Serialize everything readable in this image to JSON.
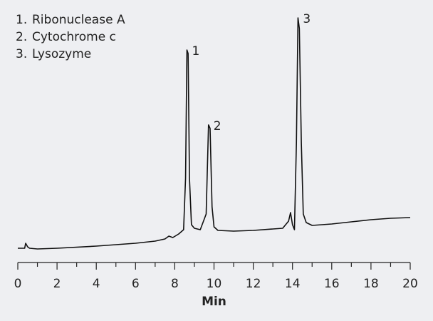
{
  "chart_data": {
    "type": "line",
    "legend": [
      {
        "number": "1.",
        "name": "Ribonuclease A"
      },
      {
        "number": "2.",
        "name": "Cytochrome c"
      },
      {
        "number": "3.",
        "name": "Lysozyme"
      }
    ],
    "peak_labels": [
      "1",
      "2",
      "3"
    ],
    "xlabel": "Min",
    "x": [
      0,
      0.35,
      0.4,
      0.5,
      0.6,
      1,
      2,
      4,
      6,
      7,
      7.5,
      7.7,
      7.9,
      8.2,
      8.45,
      8.55,
      8.62,
      8.68,
      8.75,
      8.85,
      9.0,
      9.3,
      9.6,
      9.72,
      9.8,
      9.9,
      10.0,
      10.2,
      11,
      12,
      13,
      13.5,
      13.8,
      13.9,
      14.0,
      14.1,
      14.2,
      14.28,
      14.35,
      14.45,
      14.55,
      14.7,
      15,
      16,
      17,
      18,
      19,
      20
    ],
    "values": [
      20,
      20,
      27,
      22,
      20,
      19,
      20,
      23,
      27,
      30,
      33,
      37,
      35,
      40,
      46,
      118,
      298,
      293,
      118,
      53,
      48,
      46,
      68,
      193,
      188,
      78,
      50,
      45,
      44,
      45,
      47,
      48,
      58,
      70,
      53,
      46,
      168,
      343,
      328,
      168,
      68,
      56,
      52,
      54,
      57,
      60,
      62,
      63
    ],
    "color": "#111111",
    "xlim": [
      0,
      20
    ],
    "xticks": [
      0,
      2,
      4,
      6,
      8,
      10,
      12,
      14,
      16,
      18,
      20
    ],
    "xminor_ticks": [
      1,
      3,
      5,
      7,
      9,
      11,
      13,
      15,
      17,
      19
    ],
    "ylim": [
      0,
      345
    ]
  }
}
